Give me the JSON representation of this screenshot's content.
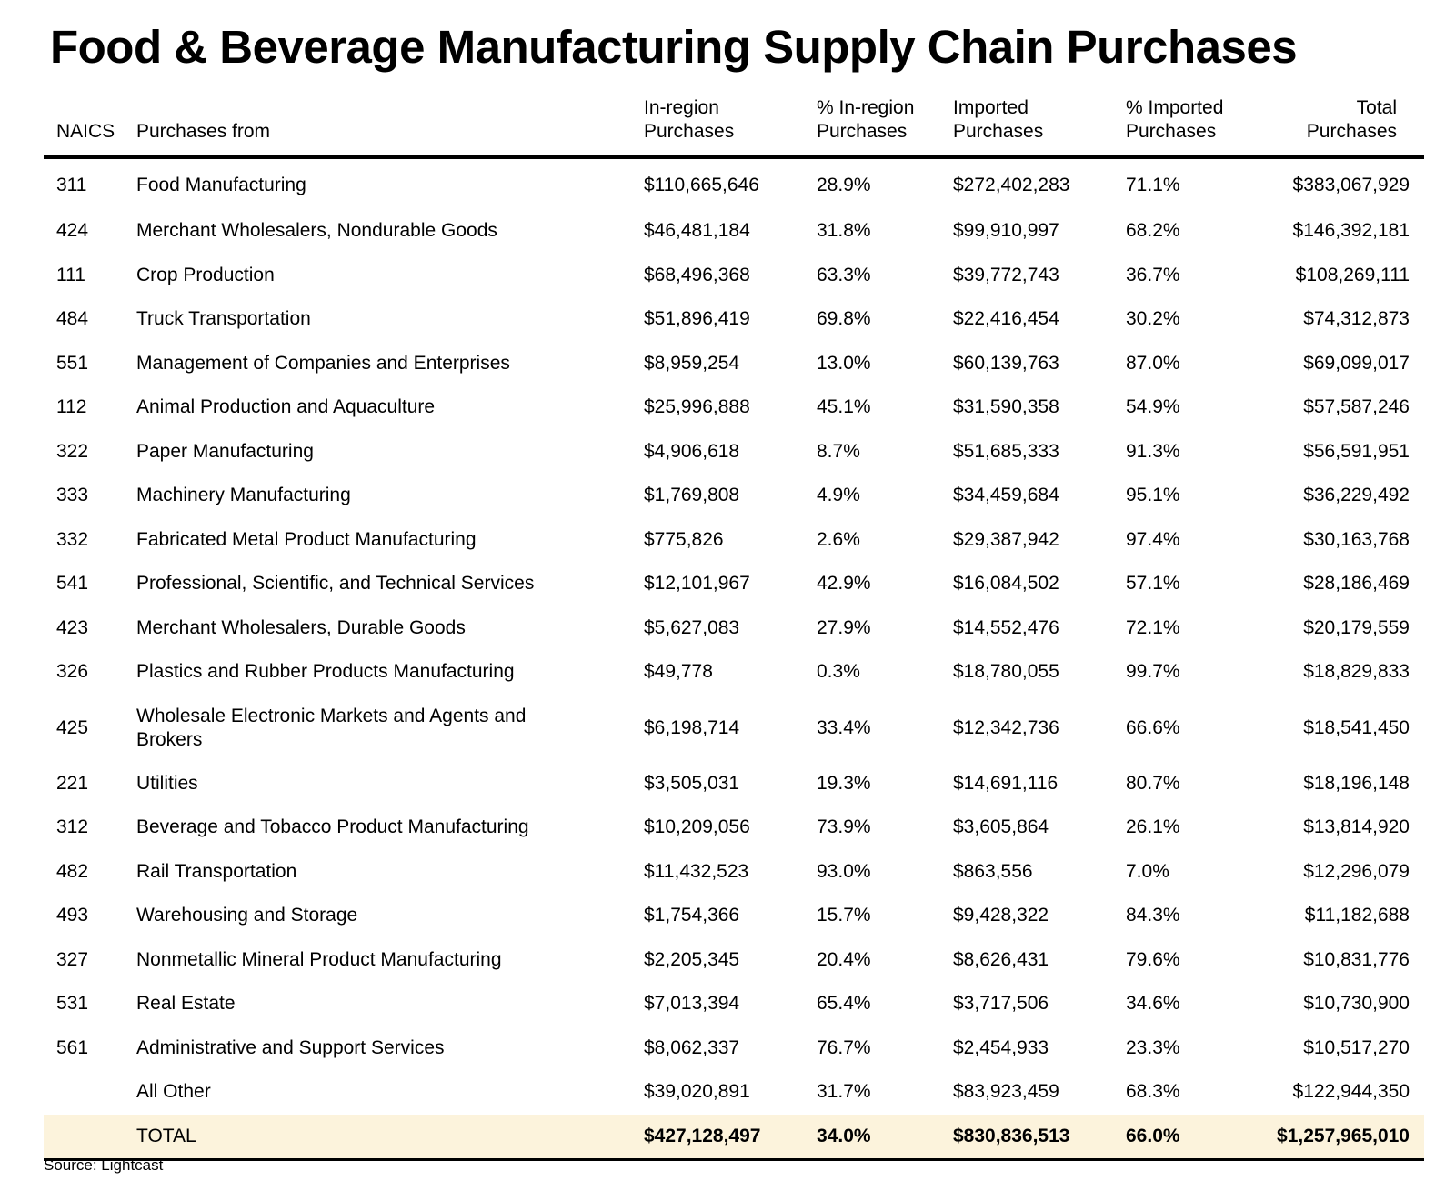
{
  "title": "Food & Beverage Manufacturing Supply Chain Purchases",
  "table": {
    "headers": {
      "naics": "NAICS",
      "purchases_from": "Purchases from",
      "in_region_line1": "In-region",
      "in_region_line2": "Purchases",
      "pct_in_region_line1": "% In-region",
      "pct_in_region_line2": "Purchases",
      "imported_line1": "Imported",
      "imported_line2": "Purchases",
      "pct_imported_line1": "% Imported",
      "pct_imported_line2": "Purchases",
      "total": "Total Purchases"
    },
    "rows": [
      {
        "naics": "311",
        "desc": "Food Manufacturing",
        "in_region": "$110,665,646",
        "pct_in": "28.9%",
        "imported": "$272,402,283",
        "pct_imp": "71.1%",
        "total": "$383,067,929"
      },
      {
        "naics": "424",
        "desc": "Merchant Wholesalers, Nondurable Goods",
        "in_region": "$46,481,184",
        "pct_in": "31.8%",
        "imported": "$99,910,997",
        "pct_imp": "68.2%",
        "total": "$146,392,181"
      },
      {
        "naics": "111",
        "desc": "Crop Production",
        "in_region": "$68,496,368",
        "pct_in": "63.3%",
        "imported": "$39,772,743",
        "pct_imp": "36.7%",
        "total": "$108,269,111"
      },
      {
        "naics": "484",
        "desc": "Truck Transportation",
        "in_region": "$51,896,419",
        "pct_in": "69.8%",
        "imported": "$22,416,454",
        "pct_imp": "30.2%",
        "total": "$74,312,873"
      },
      {
        "naics": "551",
        "desc": "Management of Companies and Enterprises",
        "in_region": "$8,959,254",
        "pct_in": "13.0%",
        "imported": "$60,139,763",
        "pct_imp": "87.0%",
        "total": "$69,099,017"
      },
      {
        "naics": "112",
        "desc": "Animal Production and Aquaculture",
        "in_region": "$25,996,888",
        "pct_in": "45.1%",
        "imported": "$31,590,358",
        "pct_imp": "54.9%",
        "total": "$57,587,246"
      },
      {
        "naics": "322",
        "desc": "Paper Manufacturing",
        "in_region": "$4,906,618",
        "pct_in": "8.7%",
        "imported": "$51,685,333",
        "pct_imp": "91.3%",
        "total": "$56,591,951"
      },
      {
        "naics": "333",
        "desc": "Machinery Manufacturing",
        "in_region": "$1,769,808",
        "pct_in": "4.9%",
        "imported": "$34,459,684",
        "pct_imp": "95.1%",
        "total": "$36,229,492"
      },
      {
        "naics": "332",
        "desc": "Fabricated Metal Product Manufacturing",
        "in_region": "$775,826",
        "pct_in": "2.6%",
        "imported": "$29,387,942",
        "pct_imp": "97.4%",
        "total": "$30,163,768"
      },
      {
        "naics": "541",
        "desc": "Professional, Scientific, and Technical Services",
        "in_region": "$12,101,967",
        "pct_in": "42.9%",
        "imported": "$16,084,502",
        "pct_imp": "57.1%",
        "total": "$28,186,469"
      },
      {
        "naics": "423",
        "desc": "Merchant Wholesalers, Durable Goods",
        "in_region": "$5,627,083",
        "pct_in": "27.9%",
        "imported": "$14,552,476",
        "pct_imp": "72.1%",
        "total": "$20,179,559"
      },
      {
        "naics": "326",
        "desc": "Plastics and Rubber Products Manufacturing",
        "in_region": "$49,778",
        "pct_in": "0.3%",
        "imported": "$18,780,055",
        "pct_imp": "99.7%",
        "total": "$18,829,833"
      },
      {
        "naics": "425",
        "desc": "Wholesale Electronic Markets and Agents and Brokers",
        "in_region": "$6,198,714",
        "pct_in": "33.4%",
        "imported": "$12,342,736",
        "pct_imp": "66.6%",
        "total": "$18,541,450"
      },
      {
        "naics": "221",
        "desc": "Utilities",
        "in_region": "$3,505,031",
        "pct_in": "19.3%",
        "imported": "$14,691,116",
        "pct_imp": "80.7%",
        "total": "$18,196,148"
      },
      {
        "naics": "312",
        "desc": "Beverage and Tobacco Product Manufacturing",
        "in_region": "$10,209,056",
        "pct_in": "73.9%",
        "imported": "$3,605,864",
        "pct_imp": "26.1%",
        "total": "$13,814,920"
      },
      {
        "naics": "482",
        "desc": "Rail Transportation",
        "in_region": "$11,432,523",
        "pct_in": "93.0%",
        "imported": "$863,556",
        "pct_imp": "7.0%",
        "total": "$12,296,079"
      },
      {
        "naics": "493",
        "desc": "Warehousing and Storage",
        "in_region": "$1,754,366",
        "pct_in": "15.7%",
        "imported": "$9,428,322",
        "pct_imp": "84.3%",
        "total": "$11,182,688"
      },
      {
        "naics": "327",
        "desc": "Nonmetallic Mineral Product Manufacturing",
        "in_region": "$2,205,345",
        "pct_in": "20.4%",
        "imported": "$8,626,431",
        "pct_imp": "79.6%",
        "total": "$10,831,776"
      },
      {
        "naics": "531",
        "desc": "Real Estate",
        "in_region": "$7,013,394",
        "pct_in": "65.4%",
        "imported": "$3,717,506",
        "pct_imp": "34.6%",
        "total": "$10,730,900"
      },
      {
        "naics": "561",
        "desc": "Administrative and Support Services",
        "in_region": "$8,062,337",
        "pct_in": "76.7%",
        "imported": "$2,454,933",
        "pct_imp": "23.3%",
        "total": "$10,517,270"
      },
      {
        "naics": "",
        "desc": "All Other",
        "in_region": "$39,020,891",
        "pct_in": "31.7%",
        "imported": "$83,923,459",
        "pct_imp": "68.3%",
        "total": "$122,944,350"
      }
    ],
    "total_row": {
      "naics": "",
      "desc": "TOTAL",
      "in_region": "$427,128,497",
      "pct_in": "34.0%",
      "imported": "$830,836,513",
      "pct_imp": "66.0%",
      "total": "$1,257,965,010"
    }
  },
  "source": "Source: Lightcast",
  "colors": {
    "total_row_background": "#fcf3dc",
    "rule": "#000000",
    "text": "#000000"
  }
}
